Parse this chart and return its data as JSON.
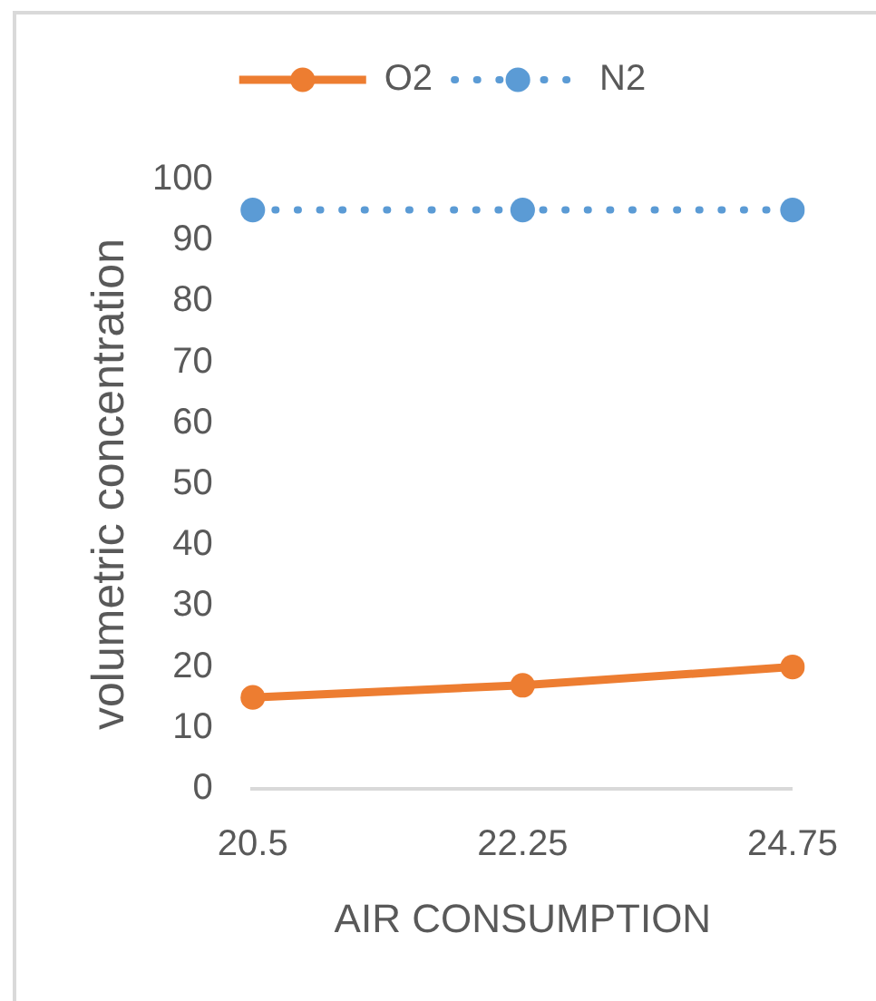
{
  "chart_data": {
    "type": "line",
    "categories": [
      "20.5",
      "22.25",
      "24.75"
    ],
    "series": [
      {
        "name": "O2",
        "color": "#ed7d31",
        "values": [
          15,
          17,
          20
        ],
        "line_style": "solid"
      },
      {
        "name": "N2",
        "color": "#5b9bd5",
        "values": [
          95,
          95,
          95
        ],
        "line_style": "dotted"
      }
    ],
    "xlabel": "AIR CONSUMPTION",
    "ylabel": "volumetric concentration",
    "ylim": [
      0,
      100
    ],
    "yticks": [
      0,
      10,
      20,
      30,
      40,
      50,
      60,
      70,
      80,
      90,
      100
    ],
    "legend": "top",
    "marker": "circle"
  }
}
